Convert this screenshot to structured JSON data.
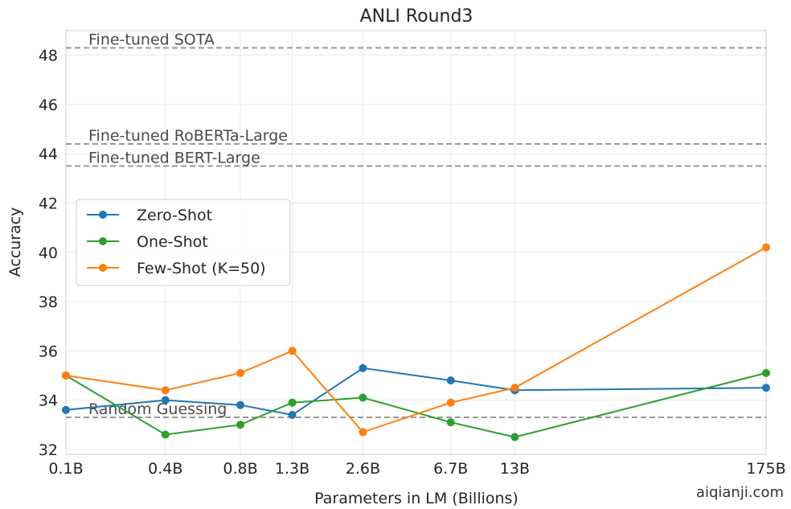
{
  "chart_data": {
    "type": "line",
    "title": "ANLI Round3",
    "xlabel": "Parameters in LM (Billions)",
    "ylabel": "Accuracy",
    "x_scale": "log",
    "x_tick_labels": [
      "0.1B",
      "0.4B",
      "0.8B",
      "1.3B",
      "2.6B",
      "6.7B",
      "13B",
      "175B"
    ],
    "x": [
      0.125,
      0.35,
      0.76,
      1.3,
      2.7,
      6.7,
      13,
      175
    ],
    "ylim": [
      31.8,
      49.0
    ],
    "y_ticks": [
      32,
      34,
      36,
      38,
      40,
      42,
      44,
      46,
      48
    ],
    "grid": true,
    "legend_position": "center-left",
    "series": [
      {
        "name": "Zero-Shot",
        "color": "#1f77b4",
        "values": [
          33.6,
          34.0,
          33.8,
          33.4,
          35.3,
          34.8,
          34.4,
          34.5
        ]
      },
      {
        "name": "One-Shot",
        "color": "#2ca02c",
        "values": [
          35.0,
          32.6,
          33.0,
          33.9,
          34.1,
          33.1,
          32.5,
          35.1
        ]
      },
      {
        "name": "Few-Shot (K=50)",
        "color": "#ff7f0e",
        "values": [
          35.0,
          34.4,
          35.1,
          36.0,
          32.7,
          33.9,
          34.5,
          40.2
        ]
      }
    ],
    "reference_lines": [
      {
        "label": "Fine-tuned SOTA",
        "value": 48.3
      },
      {
        "label": "Fine-tuned RoBERTa-Large",
        "value": 44.4
      },
      {
        "label": "Fine-tuned BERT-Large",
        "value": 43.5
      },
      {
        "label": "Random Guessing",
        "value": 33.3
      }
    ],
    "reference_color": "#999999"
  },
  "watermark": "aiqianji.com"
}
